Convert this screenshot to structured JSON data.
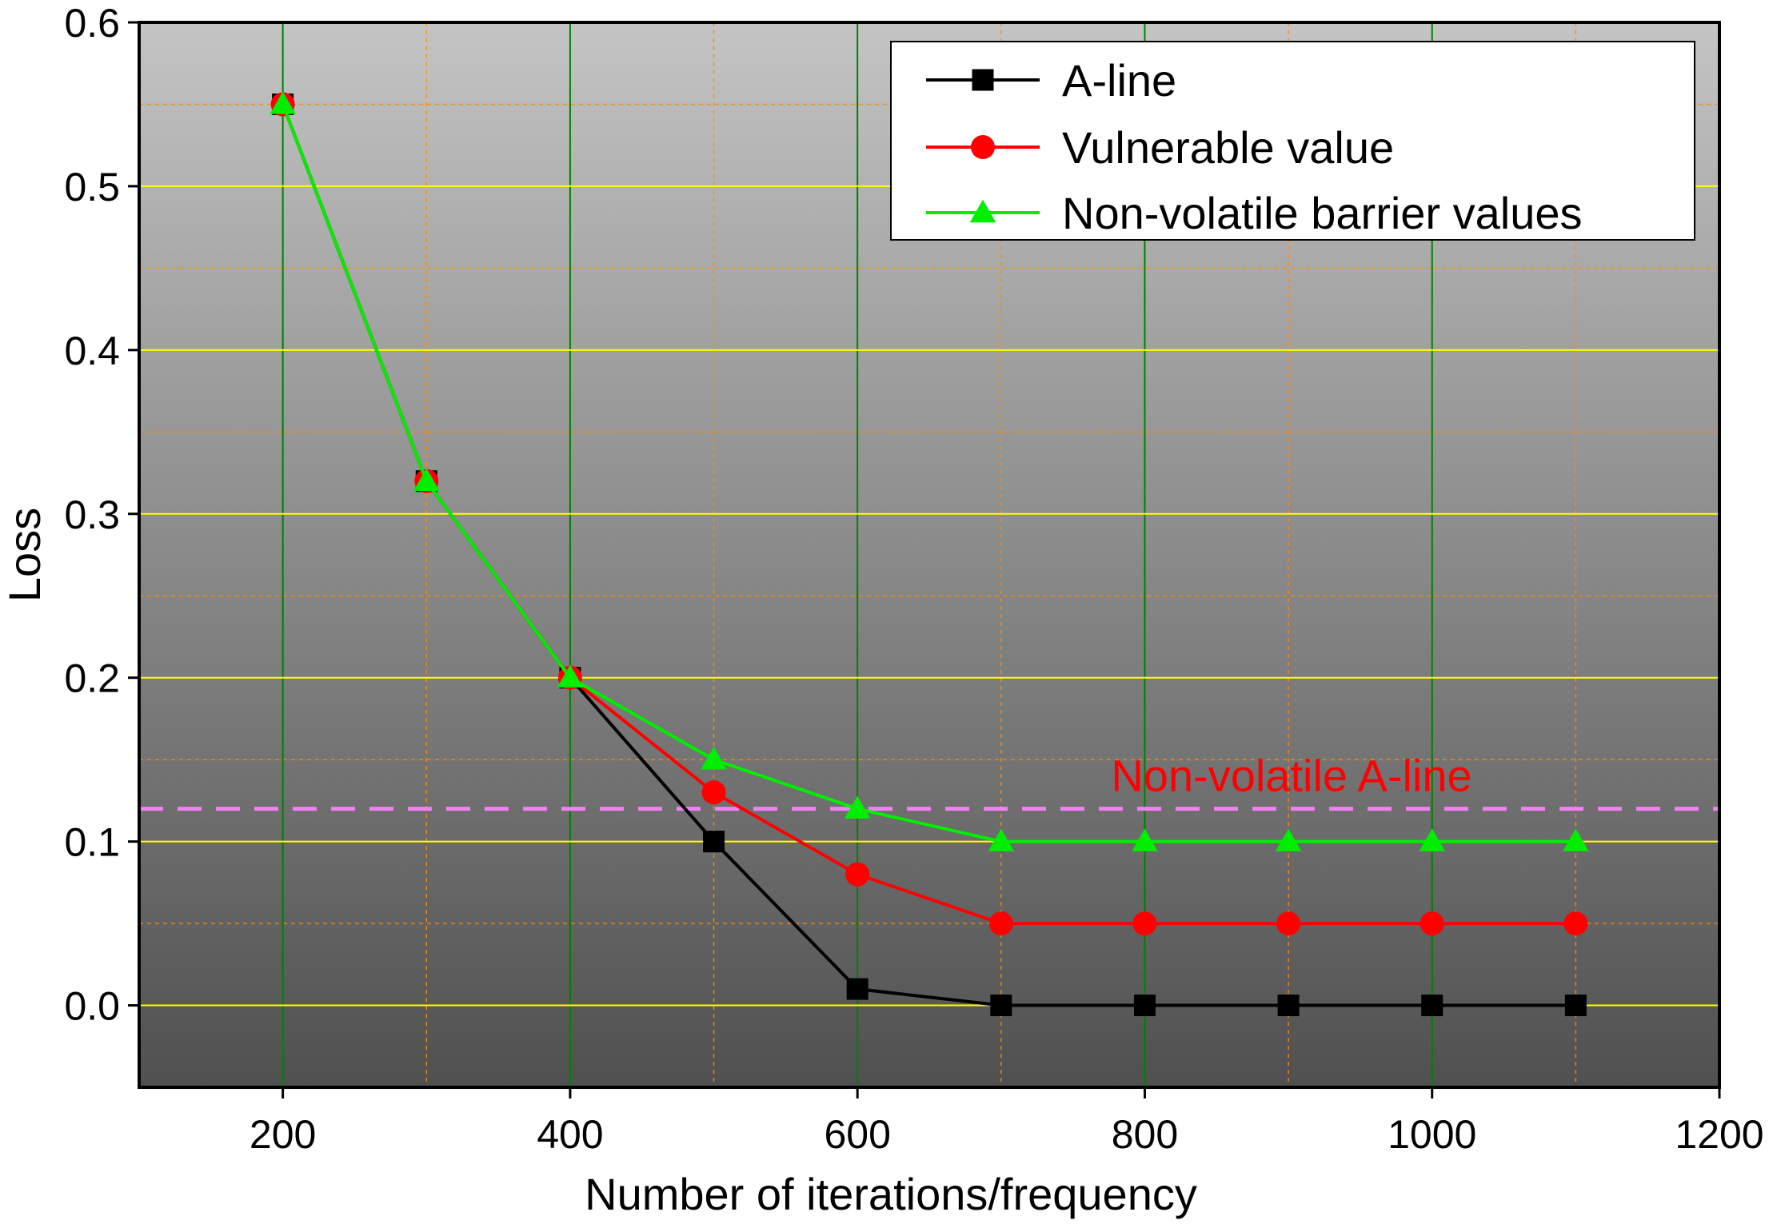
{
  "chart_data": {
    "type": "line",
    "title": "",
    "xlabel": "Number of iterations/frequency",
    "ylabel": "Loss",
    "xlim": [
      100,
      1200
    ],
    "ylim": [
      -0.05,
      0.6
    ],
    "x_ticks": [
      200,
      400,
      600,
      800,
      1000,
      1200
    ],
    "y_ticks": [
      0.0,
      0.1,
      0.2,
      0.3,
      0.4,
      0.5,
      0.6
    ],
    "x_tick_labels": [
      "200",
      "400",
      "600",
      "800",
      "1000",
      "1200"
    ],
    "y_tick_labels": [
      "0.0",
      "0.1",
      "0.2",
      "0.3",
      "0.4",
      "0.5",
      "0.6"
    ],
    "x": [
      200,
      300,
      400,
      500,
      600,
      700,
      800,
      900,
      1000,
      1100
    ],
    "series": [
      {
        "name": "A-line",
        "marker": "square",
        "color": "#000000",
        "values": [
          0.55,
          0.32,
          0.2,
          0.1,
          0.01,
          0.0,
          0.0,
          0.0,
          0.0,
          0.0
        ]
      },
      {
        "name": "Vulnerable value",
        "marker": "circle",
        "color": "#ff0000",
        "values": [
          0.55,
          0.32,
          0.2,
          0.13,
          0.08,
          0.05,
          0.05,
          0.05,
          0.05,
          0.05
        ]
      },
      {
        "name": "Non-volatile barrier values",
        "marker": "triangle",
        "color": "#00ee00",
        "values": [
          0.55,
          0.32,
          0.2,
          0.15,
          0.12,
          0.1,
          0.1,
          0.1,
          0.1,
          0.1
        ]
      }
    ],
    "reference_line": {
      "label": "Non-volatile A-line",
      "y": 0.12,
      "color": "#ee82ee",
      "label_color": "#ff0000",
      "style": "dashed"
    },
    "grid": true,
    "legend_position": "top-right",
    "colors": {
      "background_top": "#c4c4c4",
      "background_bottom": "#505050",
      "major_grid_x": "#008000",
      "major_grid_y": "#ffff00",
      "minor_grid": "#ff8c00"
    }
  }
}
